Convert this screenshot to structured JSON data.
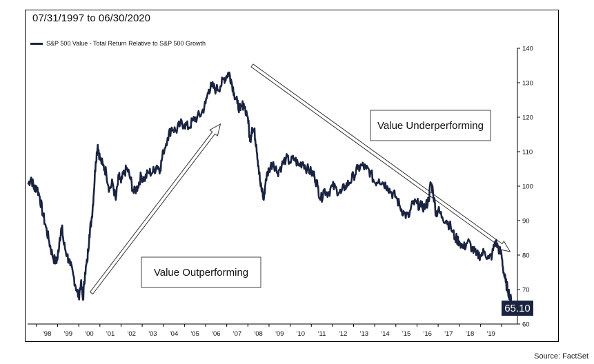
{
  "header": {
    "date_range": "07/31/1997 to 06/30/2020"
  },
  "footer": {
    "source": "Source: FactSet"
  },
  "colors": {
    "series": "#1a2340",
    "frame": "#000000",
    "background": "#ffffff"
  },
  "chart_data": {
    "type": "line",
    "series": [
      {
        "name": "S&P 500 Value - Total Return Relative to S&P 500 Growth",
        "points": [
          [
            1997.6,
            100.5
          ],
          [
            1997.75,
            102.5
          ],
          [
            1997.9,
            99
          ],
          [
            1998.0,
            100
          ],
          [
            1998.15,
            97
          ],
          [
            1998.3,
            92
          ],
          [
            1998.45,
            88
          ],
          [
            1998.6,
            84
          ],
          [
            1998.75,
            80
          ],
          [
            1998.9,
            78
          ],
          [
            1999.0,
            79
          ],
          [
            1999.1,
            85
          ],
          [
            1999.2,
            88
          ],
          [
            1999.3,
            83
          ],
          [
            1999.45,
            80
          ],
          [
            1999.6,
            77
          ],
          [
            1999.75,
            74
          ],
          [
            1999.9,
            70
          ],
          [
            2000.0,
            68
          ],
          [
            2000.1,
            72
          ],
          [
            2000.2,
            67
          ],
          [
            2000.3,
            75
          ],
          [
            2000.4,
            78
          ],
          [
            2000.5,
            86
          ],
          [
            2000.6,
            90
          ],
          [
            2000.7,
            97
          ],
          [
            2000.8,
            107
          ],
          [
            2000.9,
            112
          ],
          [
            2001.0,
            108
          ],
          [
            2001.15,
            106
          ],
          [
            2001.3,
            104
          ],
          [
            2001.45,
            99
          ],
          [
            2001.6,
            101
          ],
          [
            2001.75,
            96
          ],
          [
            2001.9,
            103
          ],
          [
            2002.0,
            101
          ],
          [
            2002.15,
            104
          ],
          [
            2002.3,
            105
          ],
          [
            2002.45,
            102
          ],
          [
            2002.6,
            98
          ],
          [
            2002.8,
            100
          ],
          [
            2002.95,
            103
          ],
          [
            2003.1,
            102
          ],
          [
            2003.3,
            104
          ],
          [
            2003.5,
            104
          ],
          [
            2003.7,
            106
          ],
          [
            2003.85,
            105
          ],
          [
            2004.0,
            110
          ],
          [
            2004.2,
            114
          ],
          [
            2004.4,
            117
          ],
          [
            2004.6,
            116
          ],
          [
            2004.8,
            118
          ],
          [
            2005.0,
            118
          ],
          [
            2005.2,
            117
          ],
          [
            2005.4,
            119
          ],
          [
            2005.6,
            120
          ],
          [
            2005.8,
            121
          ],
          [
            2006.0,
            124
          ],
          [
            2006.15,
            128
          ],
          [
            2006.3,
            129
          ],
          [
            2006.5,
            128
          ],
          [
            2006.7,
            129
          ],
          [
            2006.85,
            131
          ],
          [
            2007.0,
            132
          ],
          [
            2007.1,
            133
          ],
          [
            2007.2,
            131
          ],
          [
            2007.35,
            127
          ],
          [
            2007.5,
            124
          ],
          [
            2007.65,
            122
          ],
          [
            2007.8,
            124
          ],
          [
            2008.0,
            120
          ],
          [
            2008.1,
            113
          ],
          [
            2008.2,
            117
          ],
          [
            2008.3,
            116
          ],
          [
            2008.4,
            112
          ],
          [
            2008.5,
            106
          ],
          [
            2008.6,
            100
          ],
          [
            2008.7,
            98
          ],
          [
            2008.75,
            96
          ],
          [
            2008.85,
            102
          ],
          [
            2009.0,
            105
          ],
          [
            2009.2,
            107
          ],
          [
            2009.4,
            104
          ],
          [
            2009.6,
            106
          ],
          [
            2009.8,
            108
          ],
          [
            2010.0,
            107
          ],
          [
            2010.2,
            108
          ],
          [
            2010.4,
            106
          ],
          [
            2010.6,
            107
          ],
          [
            2010.8,
            105
          ],
          [
            2011.0,
            104
          ],
          [
            2011.15,
            103
          ],
          [
            2011.3,
            100
          ],
          [
            2011.45,
            96
          ],
          [
            2011.6,
            99
          ],
          [
            2011.8,
            98
          ],
          [
            2012.0,
            100
          ],
          [
            2012.2,
            99
          ],
          [
            2012.4,
            98
          ],
          [
            2012.6,
            100
          ],
          [
            2012.8,
            101
          ],
          [
            2013.0,
            103
          ],
          [
            2013.2,
            105
          ],
          [
            2013.4,
            106
          ],
          [
            2013.6,
            105
          ],
          [
            2013.8,
            104
          ],
          [
            2014.0,
            101
          ],
          [
            2014.2,
            102
          ],
          [
            2014.4,
            101
          ],
          [
            2014.6,
            100
          ],
          [
            2014.8,
            98
          ],
          [
            2015.0,
            97
          ],
          [
            2015.2,
            94
          ],
          [
            2015.4,
            92
          ],
          [
            2015.6,
            91
          ],
          [
            2015.8,
            95
          ],
          [
            2016.0,
            95
          ],
          [
            2016.2,
            94
          ],
          [
            2016.4,
            94
          ],
          [
            2016.55,
            96
          ],
          [
            2016.65,
            101
          ],
          [
            2016.75,
            99
          ],
          [
            2016.9,
            92
          ],
          [
            2017.0,
            93
          ],
          [
            2017.2,
            91
          ],
          [
            2017.4,
            90
          ],
          [
            2017.6,
            88
          ],
          [
            2017.8,
            85
          ],
          [
            2018.0,
            84
          ],
          [
            2018.2,
            82
          ],
          [
            2018.4,
            84
          ],
          [
            2018.6,
            82
          ],
          [
            2018.8,
            80
          ],
          [
            2019.0,
            80
          ],
          [
            2019.2,
            81
          ],
          [
            2019.4,
            79
          ],
          [
            2019.55,
            80
          ],
          [
            2019.7,
            84
          ],
          [
            2019.85,
            82
          ],
          [
            2020.0,
            80
          ],
          [
            2020.1,
            75
          ],
          [
            2020.2,
            72
          ],
          [
            2020.3,
            70
          ],
          [
            2020.4,
            68
          ],
          [
            2020.5,
            65.1
          ]
        ]
      }
    ],
    "y_axis": {
      "min": 60,
      "max": 140,
      "ticks": [
        60,
        70,
        80,
        90,
        100,
        110,
        120,
        130,
        140
      ],
      "position": "right"
    },
    "x_axis": {
      "min": 1997.58,
      "max": 2020.75,
      "tick_labels": [
        "'98",
        "'99",
        "'00",
        "'01",
        "'02",
        "'03",
        "'04",
        "'05",
        "'06",
        "'07",
        "'08",
        "'09",
        "'10",
        "'11",
        "'12",
        "'13",
        "'14",
        "'15",
        "'16",
        "'17",
        "'18",
        "'19"
      ],
      "tick_years": [
        1998,
        1999,
        2000,
        2001,
        2002,
        2003,
        2004,
        2005,
        2006,
        2007,
        2008,
        2009,
        2010,
        2011,
        2012,
        2013,
        2014,
        2015,
        2016,
        2017,
        2018,
        2019
      ]
    },
    "last_value_label": "65.10",
    "legend_placement": "top-left",
    "grid": false,
    "annotations": [
      {
        "text": "Value Outperforming",
        "arrow_from": [
          2000.6,
          69
        ],
        "arrow_to": [
          2006.7,
          118
        ]
      },
      {
        "text": "Value Underperforming",
        "arrow_from": [
          2008.2,
          135
        ],
        "arrow_to": [
          2020.4,
          81
        ]
      }
    ]
  }
}
